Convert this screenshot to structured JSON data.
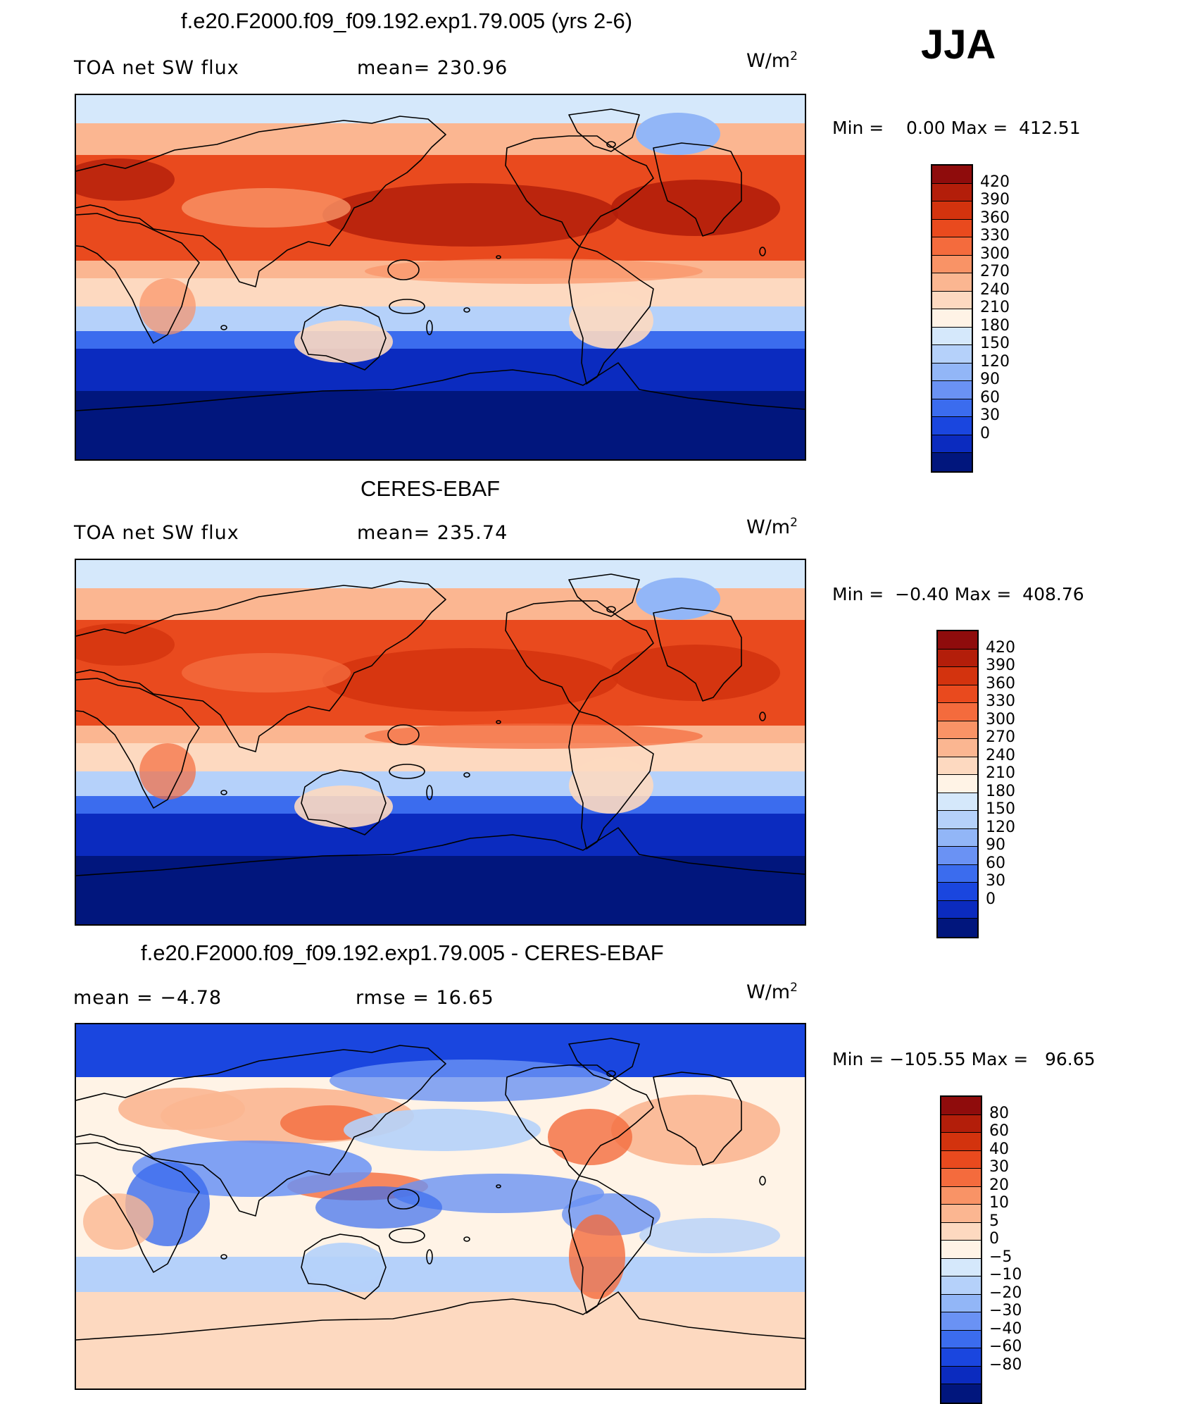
{
  "season": "JJA",
  "panels": [
    {
      "title": "f.e20.F2000.f09_f09.192.exp1.79.005 (yrs 2-6)",
      "left_label": "TOA net SW flux",
      "center_label": "mean= 230.96",
      "units": "W/m",
      "units_exp": "2",
      "min_max": "Min =    0.00 Max =  412.51",
      "map_style": "model",
      "colorbar": {
        "labels": [
          "420",
          "390",
          "360",
          "330",
          "300",
          "270",
          "240",
          "210",
          "180",
          "150",
          "120",
          "90",
          "60",
          "30",
          "0"
        ],
        "colors": [
          "#8f0c0c",
          "#b31e0a",
          "#d3330e",
          "#e94a1e",
          "#f46b3d",
          "#f99366",
          "#fbb691",
          "#fdd9c0",
          "#fff3e6",
          "#d5e8fb",
          "#b5d1fa",
          "#92b6f7",
          "#6a92f4",
          "#3b6cee",
          "#1a46df",
          "#0b2bbf",
          "#01167d"
        ]
      },
      "map_colors": {
        "polar_north": "#d5e8fb",
        "greenland": "#92b6f7",
        "mid_lat": "#fbb691",
        "subtropics": "#e94a1e",
        "max_core": "#b31e0a",
        "tropics": "#f99366",
        "south_subtropics": "#fdd9c0",
        "south_mid": "#b5d1fa",
        "south_high": "#3b6cee",
        "southern_ocean": "#0b2bbf",
        "antarctic": "#01167d"
      }
    },
    {
      "title": "CERES-EBAF",
      "left_label": "TOA net SW flux",
      "center_label": "mean= 235.74",
      "units": "W/m",
      "units_exp": "2",
      "min_max": "Min =  −0.40 Max =  408.76",
      "map_style": "obs",
      "colorbar": {
        "labels": [
          "420",
          "390",
          "360",
          "330",
          "300",
          "270",
          "240",
          "210",
          "180",
          "150",
          "120",
          "90",
          "60",
          "30",
          "0"
        ],
        "colors": [
          "#8f0c0c",
          "#b31e0a",
          "#d3330e",
          "#e94a1e",
          "#f46b3d",
          "#f99366",
          "#fbb691",
          "#fdd9c0",
          "#fff3e6",
          "#d5e8fb",
          "#b5d1fa",
          "#92b6f7",
          "#6a92f4",
          "#3b6cee",
          "#1a46df",
          "#0b2bbf",
          "#01167d"
        ]
      },
      "map_colors": {
        "polar_north": "#d5e8fb",
        "greenland": "#92b6f7",
        "mid_lat": "#fbb691",
        "subtropics": "#e94a1e",
        "max_core": "#d3330e",
        "tropics": "#f46b3d",
        "south_subtropics": "#fdd9c0",
        "south_mid": "#b5d1fa",
        "south_high": "#3b6cee",
        "southern_ocean": "#0b2bbf",
        "antarctic": "#01167d"
      }
    },
    {
      "title": "f.e20.F2000.f09_f09.192.exp1.79.005 - CERES-EBAF",
      "left_label": "mean =   −4.78",
      "center_label": "rmse =    16.65",
      "units": "W/m",
      "units_exp": "2",
      "min_max": "Min = −105.55 Max =   96.65",
      "map_style": "diff",
      "colorbar": {
        "labels": [
          "80",
          "60",
          "40",
          "30",
          "20",
          "10",
          "5",
          "0",
          "−5",
          "−10",
          "−20",
          "−30",
          "−40",
          "−60",
          "−80"
        ],
        "colors": [
          "#8f0c0c",
          "#b31e0a",
          "#d3330e",
          "#e94a1e",
          "#f46b3d",
          "#f99366",
          "#fbb691",
          "#fdd9c0",
          "#fff3e6",
          "#d5e8fb",
          "#b5d1fa",
          "#92b6f7",
          "#6a92f4",
          "#3b6cee",
          "#1a46df",
          "#0b2bbf",
          "#01167d"
        ]
      },
      "map_colors": {
        "background": "#fff3e6",
        "north_band": "#1a46df",
        "pos_light": "#fbb691",
        "pos_mid": "#f46b3d",
        "neg_light": "#b5d1fa",
        "neg_mid": "#6a92f4",
        "neg_strong": "#3b6cee",
        "south_band": "#fdd9c0"
      }
    }
  ]
}
